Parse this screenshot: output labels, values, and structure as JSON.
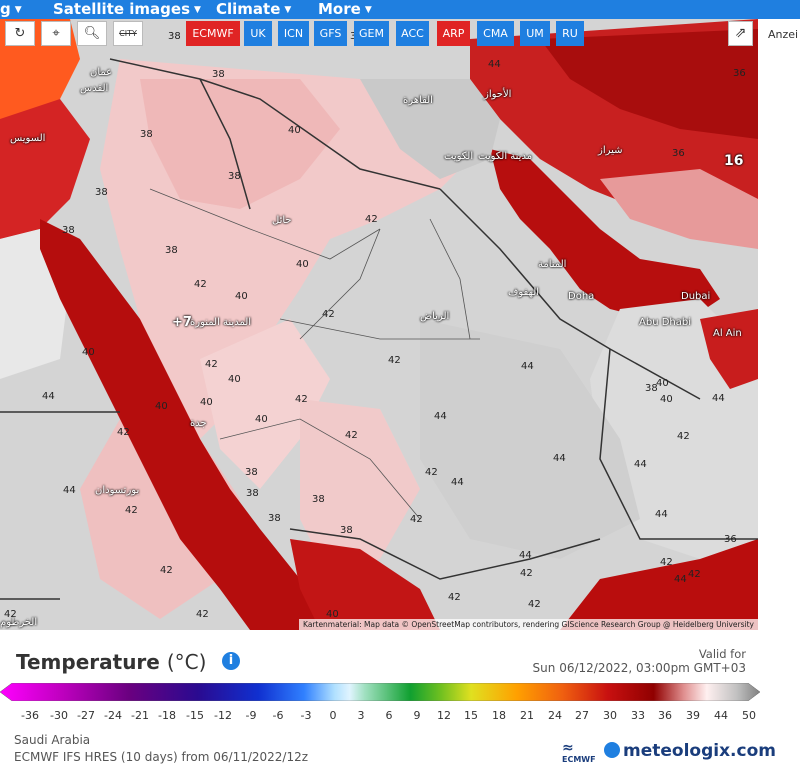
{
  "nav": {
    "items": [
      {
        "label": "g"
      },
      {
        "label": "Satellite images"
      },
      {
        "label": "Climate"
      },
      {
        "label": "More"
      }
    ]
  },
  "toolbar": {
    "tools": [
      {
        "label": "↻",
        "icon": "refresh-icon"
      },
      {
        "label": "⌖",
        "icon": "location-pin-icon"
      },
      {
        "label": "🔍︎",
        "icon": "zoom-icon"
      },
      {
        "label": "CITY",
        "icon": "city-toggle-icon"
      }
    ],
    "models": [
      {
        "label": "ECMWF",
        "active": true
      },
      {
        "label": "UK"
      },
      {
        "label": "ICN"
      },
      {
        "label": "GFS"
      },
      {
        "label": "GEM"
      },
      {
        "label": "ACC"
      },
      {
        "label": "ARP"
      },
      {
        "label": "CMA"
      },
      {
        "label": "UM"
      },
      {
        "label": "RU"
      }
    ],
    "share_icon": "share-icon"
  },
  "right_label": "Anzei",
  "map": {
    "attribution": "Kartenmaterial: Map data © OpenStreetMap contributors, rendering GIScience Research Group @ Heidelberg University",
    "marker_value": "16",
    "marker_value2": "+7",
    "contour_labels": [
      "38",
      "38",
      "38",
      "38",
      "38",
      "40",
      "38",
      "38",
      "38",
      "40",
      "42",
      "40",
      "42",
      "42",
      "40",
      "42",
      "40",
      "42",
      "42",
      "40",
      "40",
      "44",
      "42",
      "40",
      "42",
      "42",
      "44",
      "44",
      "44",
      "42",
      "44",
      "44",
      "42",
      "38",
      "38",
      "38",
      "38",
      "44",
      "42",
      "42",
      "42",
      "42",
      "44",
      "42",
      "44",
      "38",
      "40",
      "36",
      "36",
      "36",
      "38",
      "40",
      "44",
      "42",
      "44",
      "44",
      "42",
      "40",
      "42",
      "42"
    ],
    "cities": [
      "عمان",
      "القدس",
      "السويس",
      "القاهرة",
      "الأحواز",
      "الكويت",
      "مدينة الكويت",
      "شيراز",
      "حائل",
      "المدينة المنورة",
      "الرياض",
      "المنامة",
      "الهفوف",
      "Doha",
      "Dubai",
      "Abu Dhabi",
      "Al Ain",
      "جدة",
      "بورتسودان",
      "الخرطوم"
    ],
    "colors": {
      "hot": "#b40f0f",
      "warm": "#e8a0a0",
      "land": "#d6d6d6",
      "water": "#c8102e"
    }
  },
  "legend": {
    "title": "Temperature",
    "unit": "(°C)",
    "info_icon": "info-icon",
    "valid_for": "Valid for",
    "valid_time": "Sun 06/12/2022, 03:00pm GMT+03",
    "ticks": [
      "-36",
      "-30",
      "-27",
      "-24",
      "-21",
      "-18",
      "-15",
      "-12",
      "-9",
      "-6",
      "-3",
      "0",
      "3",
      "6",
      "9",
      "12",
      "15",
      "18",
      "21",
      "24",
      "27",
      "30",
      "33",
      "36",
      "39",
      "44",
      "50"
    ],
    "region": "Saudi Arabia",
    "run": "ECMWF IFS HRES (10 days) from 06/11/2022/12z",
    "ecmwf_logo": "ECMWF",
    "brand": "meteologix.com"
  }
}
